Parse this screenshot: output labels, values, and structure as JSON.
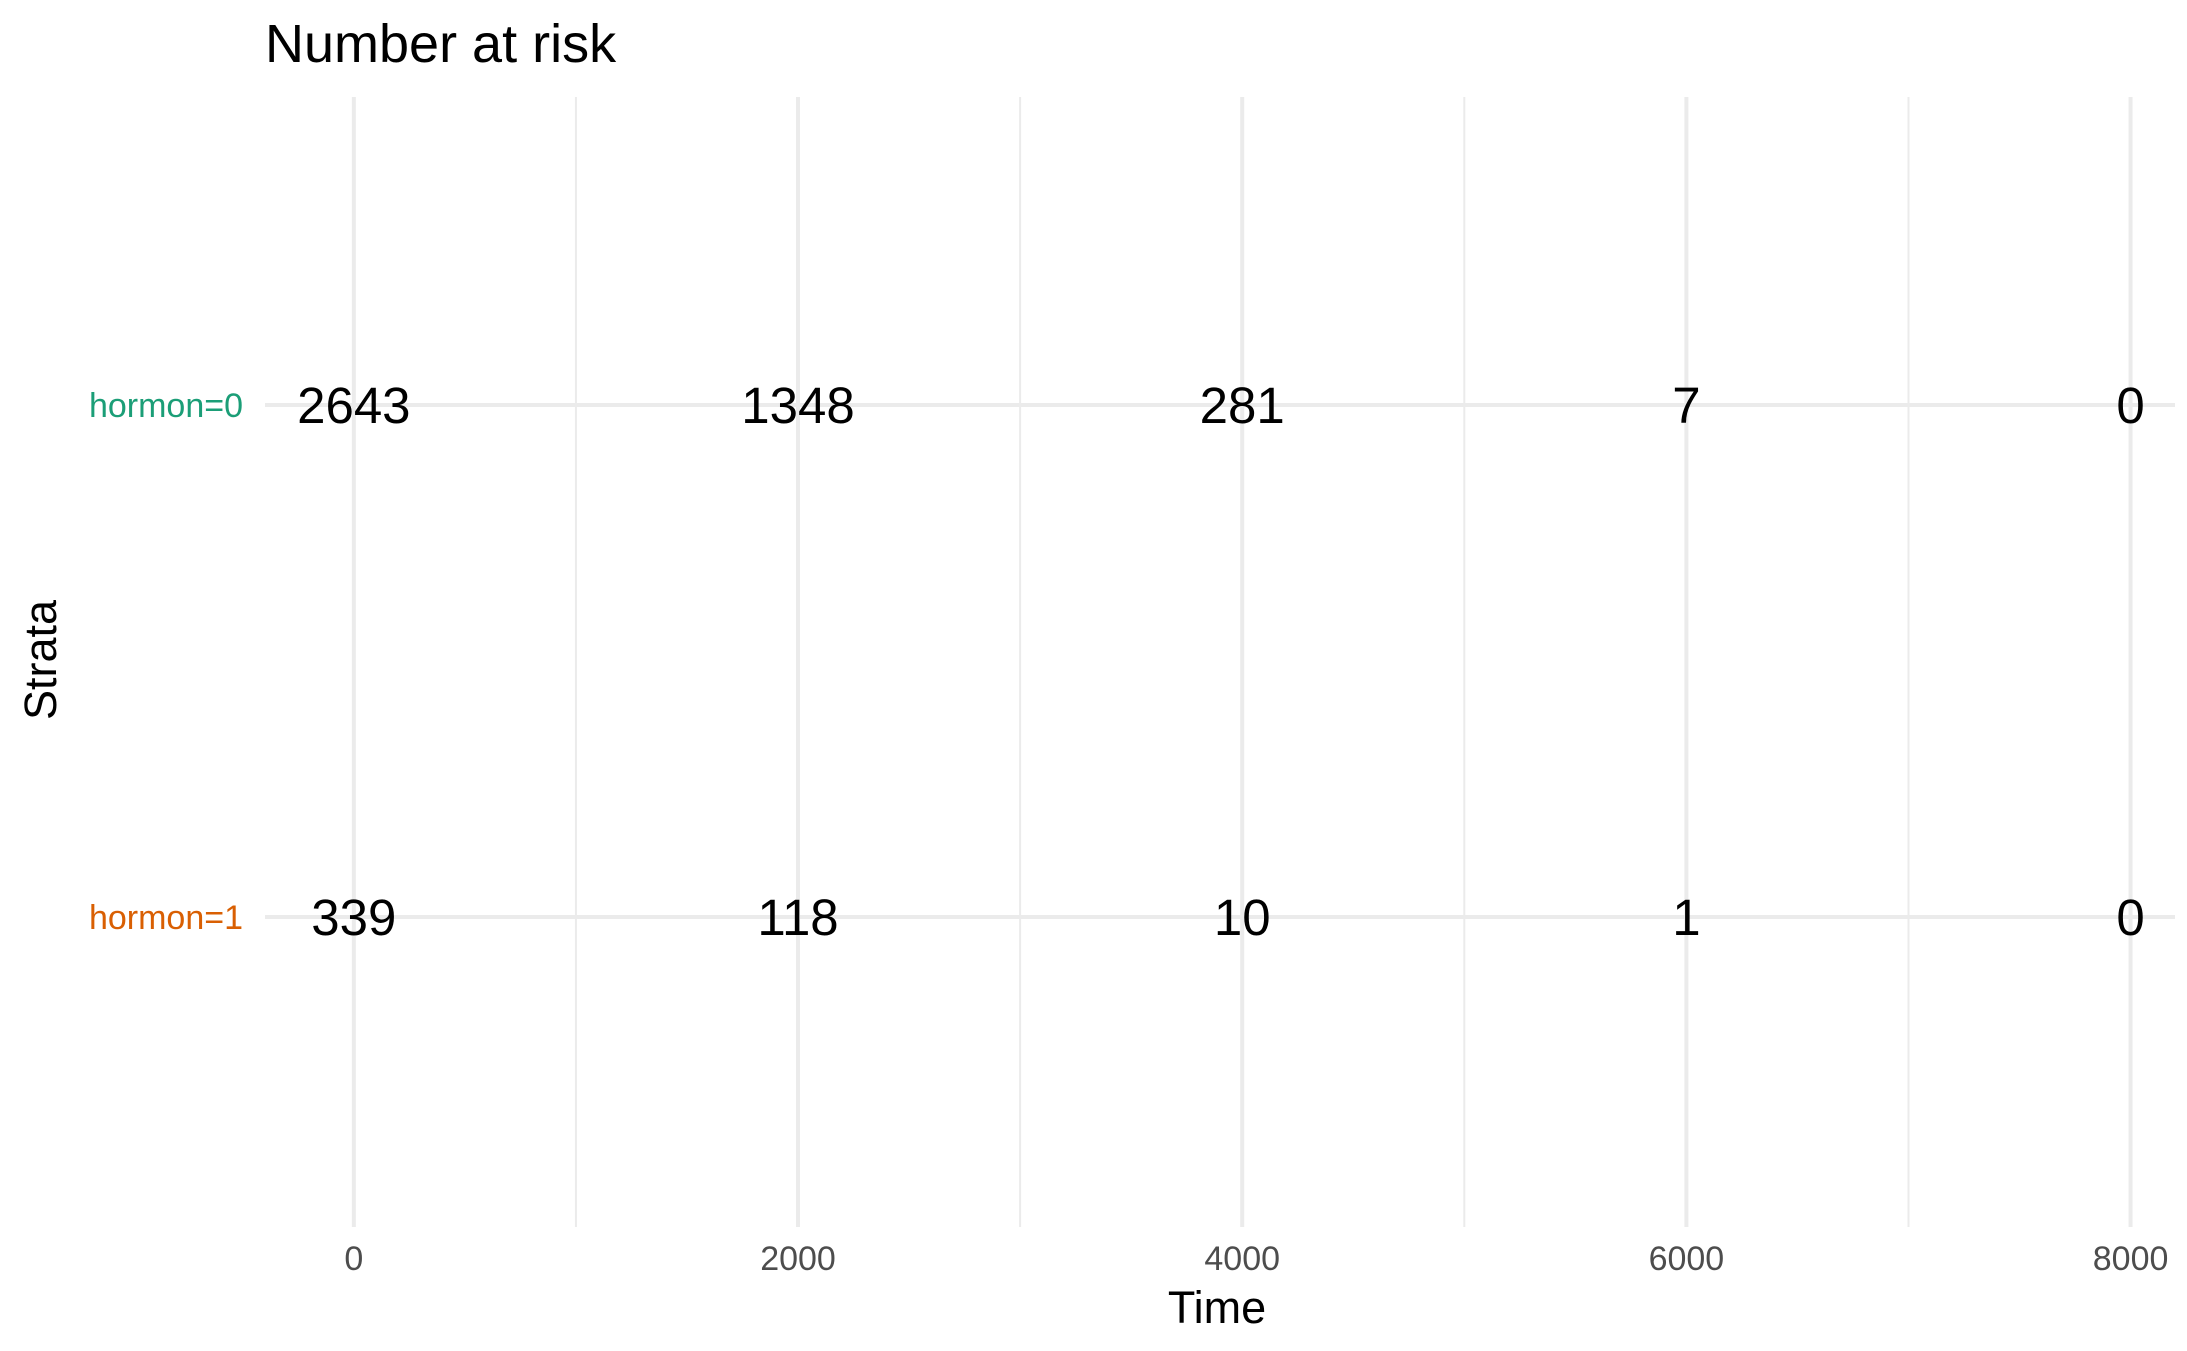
{
  "chart_data": {
    "type": "table",
    "title": "Number at risk",
    "xlabel": "Time",
    "ylabel": "Strata",
    "xlim": [
      -400,
      8200
    ],
    "x_ticks": [
      0,
      2000,
      4000,
      6000,
      8000
    ],
    "x_tick_labels": [
      "0",
      "2000",
      "4000",
      "6000",
      "8000"
    ],
    "x_minor_ticks": [
      1000,
      3000,
      5000,
      7000
    ],
    "grid": true,
    "categories": [
      "hormon=0",
      "hormon=1"
    ],
    "series": [
      {
        "name": "hormon=0",
        "color": "#1b9e77",
        "x": [
          0,
          2000,
          4000,
          6000,
          8000
        ],
        "values": [
          2643,
          1348,
          281,
          7,
          0
        ]
      },
      {
        "name": "hormon=1",
        "color": "#d95f02",
        "x": [
          0,
          2000,
          4000,
          6000,
          8000
        ],
        "values": [
          339,
          118,
          10,
          1,
          0
        ]
      }
    ]
  }
}
